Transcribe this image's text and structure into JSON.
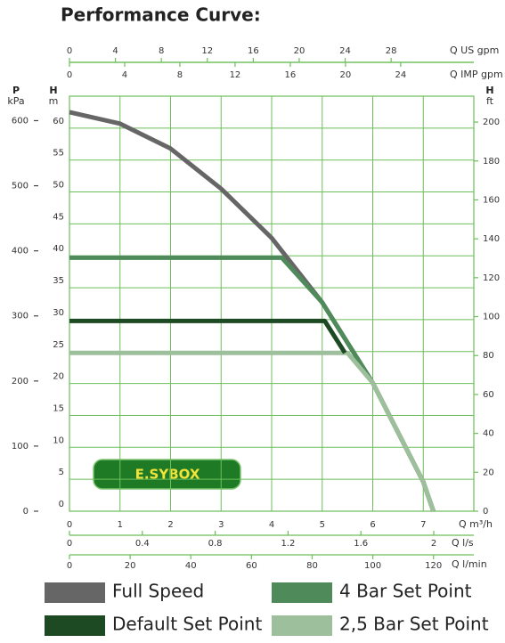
{
  "chart_data": {
    "type": "line",
    "title": "Performance Curve:",
    "xlabel": "Q m³/h",
    "xlim": [
      0,
      8
    ],
    "xticks": [
      0,
      1,
      2,
      3,
      4,
      5,
      6,
      7
    ],
    "ylabel": "H",
    "yunit": "m",
    "ylim": [
      0,
      65
    ],
    "yticks": [
      0,
      5,
      10,
      15,
      20,
      25,
      30,
      35,
      40,
      45,
      50,
      55,
      60
    ],
    "grid": true,
    "grid_color": "#6cbf5a",
    "extra_axes": [
      {
        "side": "top",
        "label": "Q US gpm",
        "lim": [
          0,
          35.2
        ],
        "ticks": [
          0,
          4,
          8,
          12,
          16,
          20,
          24,
          28
        ]
      },
      {
        "side": "top",
        "label": "Q IMP gpm",
        "lim": [
          0,
          29.3
        ],
        "ticks": [
          0,
          4,
          8,
          12,
          16,
          20,
          24
        ]
      },
      {
        "side": "bottom",
        "label": "Q l/s",
        "lim": [
          0,
          2.22
        ],
        "ticks": [
          0,
          0.4,
          0.8,
          1.2,
          1.6,
          2
        ]
      },
      {
        "side": "bottom",
        "label": "Q l/min",
        "lim": [
          0,
          133.3
        ],
        "ticks": [
          0,
          20,
          40,
          60,
          80,
          100,
          120
        ]
      },
      {
        "side": "left",
        "label": "P",
        "unit": "kPa",
        "lim": [
          0,
          637.6
        ],
        "ticks": [
          0,
          100,
          200,
          300,
          400,
          500,
          600
        ]
      },
      {
        "side": "right",
        "label": "H",
        "unit": "ft",
        "lim": [
          0,
          213.3
        ],
        "ticks": [
          0,
          20,
          40,
          60,
          80,
          100,
          120,
          140,
          160,
          180,
          200
        ]
      }
    ],
    "annotation": "E.SYBOX",
    "series": [
      {
        "name": "Full Speed",
        "color": "#666666",
        "x": [
          0,
          1,
          2,
          3,
          4,
          5,
          6,
          7,
          7.2
        ],
        "values": [
          62.5,
          60.7,
          56.8,
          50.5,
          42.8,
          32.7,
          20.1,
          4.6,
          0
        ]
      },
      {
        "name": "4 Bar Set Point",
        "color": "#4f8a5a",
        "x": [
          0,
          4.2,
          5,
          6,
          7,
          7.2
        ],
        "values": [
          39.7,
          39.7,
          32.7,
          20.1,
          4.6,
          0
        ]
      },
      {
        "name": "2,5 Bar Set Point",
        "color": "#9dbf9b",
        "x": [
          0,
          5.5,
          6,
          7,
          7.2
        ],
        "values": [
          24.8,
          24.8,
          20.1,
          4.6,
          0
        ]
      },
      {
        "name": "Default Set Point",
        "color": "#1d4a22",
        "x": [
          0,
          5.05,
          5.45
        ],
        "values": [
          29.8,
          29.8,
          24.8
        ]
      }
    ]
  }
}
